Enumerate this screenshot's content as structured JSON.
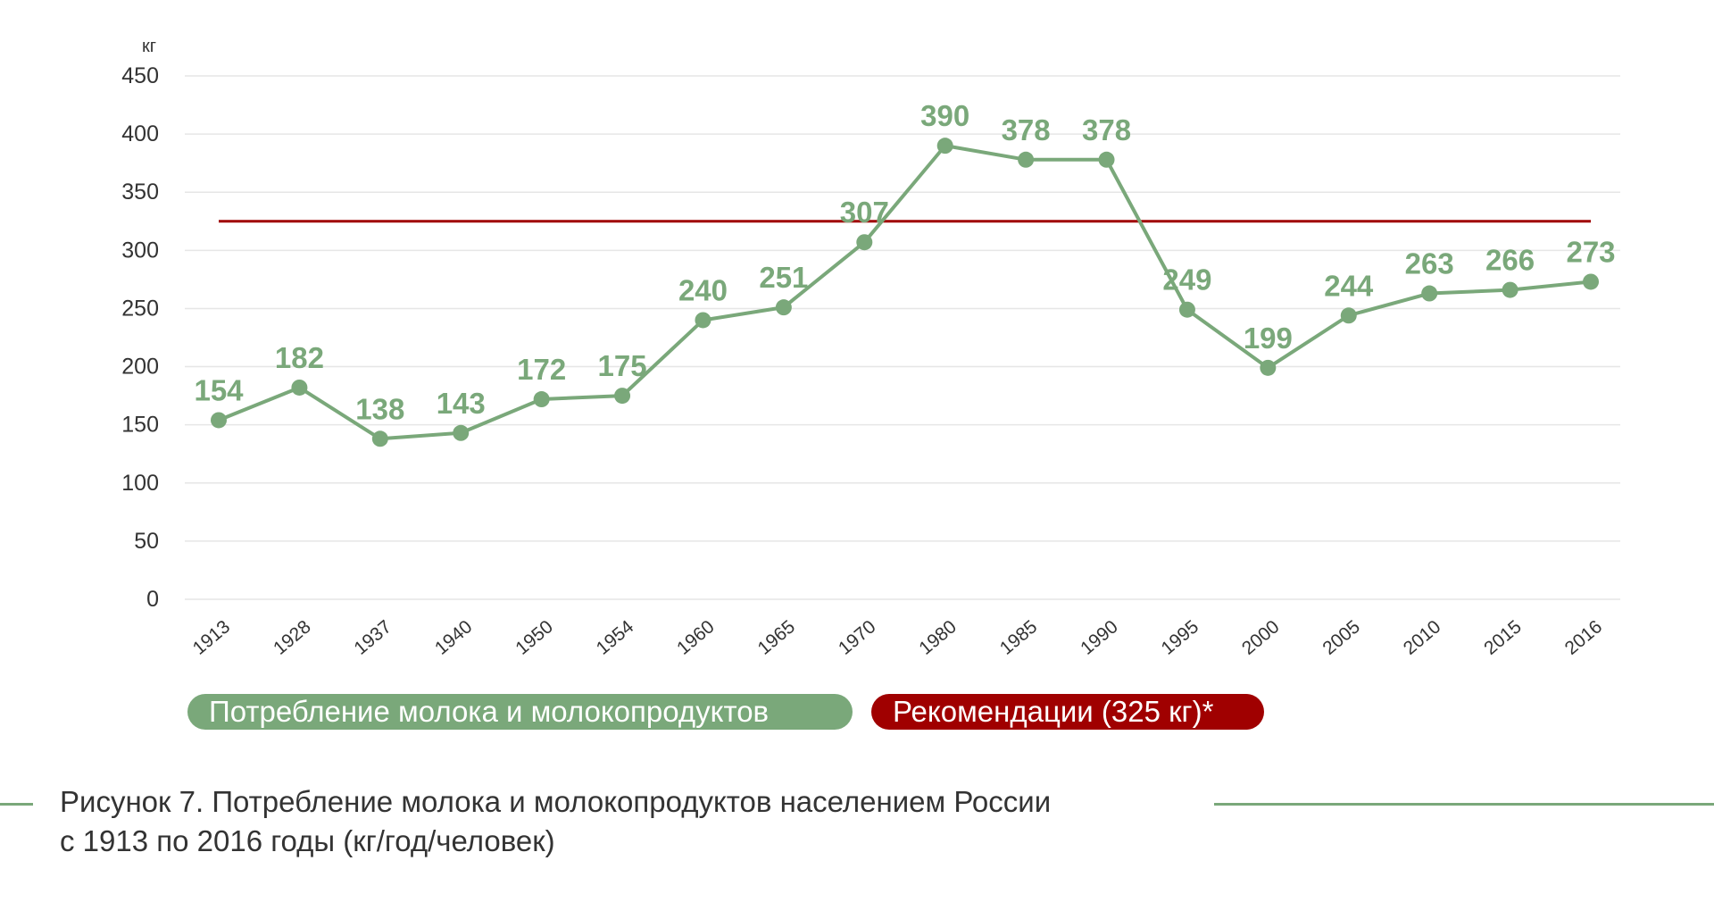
{
  "chart_data": {
    "type": "line",
    "unit_label": "кг",
    "ylim": [
      0,
      450
    ],
    "yticks": [
      0,
      50,
      100,
      150,
      200,
      250,
      300,
      350,
      400,
      450
    ],
    "grid": true,
    "categories": [
      "1913",
      "1928",
      "1937",
      "1940",
      "1950",
      "1954",
      "1960",
      "1965",
      "1970",
      "1980",
      "1985",
      "1990",
      "1995",
      "2000",
      "2005",
      "2010",
      "2015",
      "2016"
    ],
    "series": [
      {
        "name": "Потребление молока и молокопродуктов",
        "values": [
          154,
          182,
          138,
          143,
          172,
          175,
          240,
          251,
          307,
          390,
          378,
          378,
          249,
          199,
          244,
          263,
          266,
          273
        ],
        "color": "#7aa87a"
      }
    ],
    "reference_line": {
      "name": "Рекомендации (325 кг)*",
      "value": 325,
      "color": "#a00000"
    },
    "legend_position": "bottom-left"
  },
  "caption": {
    "line1": "Рисунок 7. Потребление молока и молокопродуктов населением России",
    "line2": "с 1913 по 2016 годы (кг/год/человек)"
  }
}
